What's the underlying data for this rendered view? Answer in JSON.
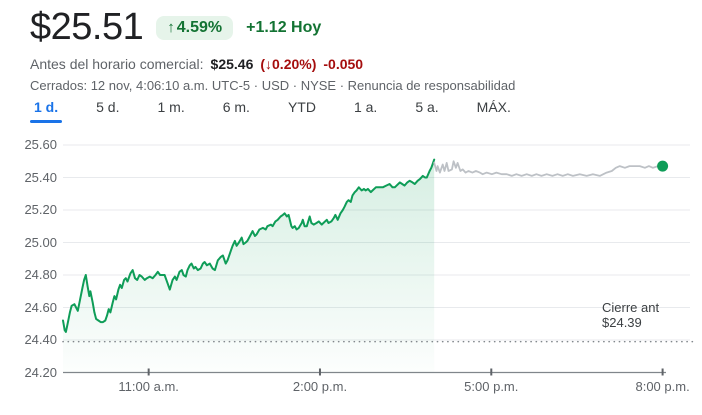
{
  "header": {
    "price": "$25.51",
    "badge_arrow": "↑",
    "badge_percent": "4.59%",
    "change_today": "+1.12 Hoy",
    "premarket_label": "Antes del horario comercial:",
    "premarket_price": "$25.46",
    "premarket_percent": "(↓0.20%)",
    "premarket_delta": "-0.050",
    "status_prefix": "Cerrados: 12 nov, 4:06:10 a.m. UTC-5 · USD · NYSE · ",
    "disclaimer_label": "Renuncia de responsabilidad"
  },
  "tabs": [
    {
      "key": "1d",
      "label": "1 d.",
      "active": true
    },
    {
      "key": "5d",
      "label": "5 d.",
      "active": false
    },
    {
      "key": "1m",
      "label": "1 m.",
      "active": false
    },
    {
      "key": "6m",
      "label": "6 m.",
      "active": false
    },
    {
      "key": "ytd",
      "label": "YTD",
      "active": false
    },
    {
      "key": "1a",
      "label": "1 a.",
      "active": false
    },
    {
      "key": "5a",
      "label": "5 a.",
      "active": false
    },
    {
      "key": "max",
      "label": "MÁX.",
      "active": false
    }
  ],
  "chart_data": {
    "type": "line",
    "xlim": [
      9.5,
      20.0
    ],
    "ylim": [
      24.2,
      25.6
    ],
    "grid": true,
    "y_ticks": [
      {
        "value": 25.6,
        "label": "25.60"
      },
      {
        "value": 25.4,
        "label": "25.40"
      },
      {
        "value": 25.2,
        "label": "25.20"
      },
      {
        "value": 25.0,
        "label": "25.00"
      },
      {
        "value": 24.8,
        "label": "24.80"
      },
      {
        "value": 24.6,
        "label": "24.60"
      },
      {
        "value": 24.4,
        "label": "24.40"
      },
      {
        "value": 24.2,
        "label": "24.20"
      }
    ],
    "x_ticks": [
      {
        "t": 11.0,
        "label": "11:00 a.m."
      },
      {
        "t": 14.0,
        "label": "2:00 p.m."
      },
      {
        "t": 17.0,
        "label": "5:00 p.m."
      },
      {
        "t": 20.0,
        "label": "8:00 p.m."
      }
    ],
    "previous_close": {
      "value": 24.39,
      "label_line1": "Cierre ant",
      "label_line2": "$24.39"
    },
    "colors": {
      "regular_line": "#0f9d58",
      "after_hours_line": "#bdc1c6",
      "fill_green": "15,157,88",
      "grid": "#e8eaed",
      "axis": "#80868b",
      "accent_green": "#137333",
      "badge_bg": "#e6f4ea",
      "red": "#a50e0e",
      "blue": "#1a73e8"
    },
    "series": [
      {
        "name": "regular",
        "points": [
          [
            9.5,
            24.52
          ],
          [
            9.53,
            24.46
          ],
          [
            9.55,
            24.45
          ],
          [
            9.58,
            24.5
          ],
          [
            9.62,
            24.57
          ],
          [
            9.65,
            24.61
          ],
          [
            9.7,
            24.62
          ],
          [
            9.73,
            24.6
          ],
          [
            9.76,
            24.58
          ],
          [
            9.8,
            24.65
          ],
          [
            9.84,
            24.72
          ],
          [
            9.87,
            24.77
          ],
          [
            9.9,
            24.8
          ],
          [
            9.93,
            24.73
          ],
          [
            9.96,
            24.67
          ],
          [
            9.98,
            24.7
          ],
          [
            10.02,
            24.63
          ],
          [
            10.05,
            24.57
          ],
          [
            10.08,
            24.53
          ],
          [
            10.12,
            24.52
          ],
          [
            10.16,
            24.51
          ],
          [
            10.2,
            24.51
          ],
          [
            10.24,
            24.52
          ],
          [
            10.27,
            24.55
          ],
          [
            10.3,
            24.59
          ],
          [
            10.33,
            24.57
          ],
          [
            10.37,
            24.63
          ],
          [
            10.4,
            24.67
          ],
          [
            10.43,
            24.65
          ],
          [
            10.47,
            24.71
          ],
          [
            10.5,
            24.74
          ],
          [
            10.53,
            24.72
          ],
          [
            10.57,
            24.77
          ],
          [
            10.6,
            24.78
          ],
          [
            10.63,
            24.76
          ],
          [
            10.68,
            24.81
          ],
          [
            10.72,
            24.83
          ],
          [
            10.76,
            24.78
          ],
          [
            10.8,
            24.77
          ],
          [
            10.84,
            24.8
          ],
          [
            10.88,
            24.79
          ],
          [
            10.93,
            24.77
          ],
          [
            10.97,
            24.78
          ],
          [
            11.02,
            24.79
          ],
          [
            11.07,
            24.78
          ],
          [
            11.12,
            24.8
          ],
          [
            11.16,
            24.82
          ],
          [
            11.2,
            24.8
          ],
          [
            11.28,
            24.8
          ],
          [
            11.33,
            24.75
          ],
          [
            11.37,
            24.71
          ],
          [
            11.42,
            24.77
          ],
          [
            11.46,
            24.79
          ],
          [
            11.49,
            24.77
          ],
          [
            11.54,
            24.82
          ],
          [
            11.58,
            24.83
          ],
          [
            11.61,
            24.8
          ],
          [
            11.65,
            24.79
          ],
          [
            11.68,
            24.83
          ],
          [
            11.72,
            24.86
          ],
          [
            11.75,
            24.87
          ],
          [
            11.79,
            24.84
          ],
          [
            11.82,
            24.85
          ],
          [
            11.86,
            24.83
          ],
          [
            11.91,
            24.84
          ],
          [
            11.95,
            24.87
          ],
          [
            11.98,
            24.88
          ],
          [
            12.02,
            24.86
          ],
          [
            12.07,
            24.87
          ],
          [
            12.12,
            24.84
          ],
          [
            12.16,
            24.83
          ],
          [
            12.21,
            24.89
          ],
          [
            12.26,
            24.91
          ],
          [
            12.3,
            24.92
          ],
          [
            12.35,
            24.87
          ],
          [
            12.38,
            24.89
          ],
          [
            12.44,
            24.95
          ],
          [
            12.47,
            24.98
          ],
          [
            12.51,
            25.01
          ],
          [
            12.54,
            24.98
          ],
          [
            12.58,
            25.0
          ],
          [
            12.63,
            25.03
          ],
          [
            12.66,
            24.99
          ],
          [
            12.7,
            25.0
          ],
          [
            12.73,
            25.01
          ],
          [
            12.79,
            25.05
          ],
          [
            12.82,
            25.07
          ],
          [
            12.86,
            25.04
          ],
          [
            12.89,
            25.05
          ],
          [
            12.94,
            25.08
          ],
          [
            13.0,
            25.09
          ],
          [
            13.05,
            25.08
          ],
          [
            13.08,
            25.1
          ],
          [
            13.14,
            25.11
          ],
          [
            13.17,
            25.1
          ],
          [
            13.22,
            25.13
          ],
          [
            13.26,
            25.14
          ],
          [
            13.31,
            25.16
          ],
          [
            13.35,
            25.17
          ],
          [
            13.38,
            25.18
          ],
          [
            13.42,
            25.16
          ],
          [
            13.45,
            25.17
          ],
          [
            13.5,
            25.1
          ],
          [
            13.52,
            25.09
          ],
          [
            13.56,
            25.1
          ],
          [
            13.59,
            25.08
          ],
          [
            13.63,
            25.09
          ],
          [
            13.68,
            25.12
          ],
          [
            13.7,
            25.14
          ],
          [
            13.73,
            25.1
          ],
          [
            13.77,
            25.1
          ],
          [
            13.82,
            25.16
          ],
          [
            13.85,
            25.12
          ],
          [
            13.89,
            25.11
          ],
          [
            13.94,
            25.12
          ],
          [
            13.98,
            25.13
          ],
          [
            14.03,
            25.11
          ],
          [
            14.06,
            25.12
          ],
          [
            14.12,
            25.14
          ],
          [
            14.15,
            25.12
          ],
          [
            14.2,
            25.13
          ],
          [
            14.24,
            25.15
          ],
          [
            14.27,
            25.17
          ],
          [
            14.31,
            25.14
          ],
          [
            14.36,
            25.18
          ],
          [
            14.4,
            25.2
          ],
          [
            14.43,
            25.22
          ],
          [
            14.47,
            25.25
          ],
          [
            14.5,
            25.26
          ],
          [
            14.54,
            25.25
          ],
          [
            14.57,
            25.29
          ],
          [
            14.61,
            25.31
          ],
          [
            14.64,
            25.32
          ],
          [
            14.68,
            25.34
          ],
          [
            14.73,
            25.32
          ],
          [
            14.77,
            25.33
          ],
          [
            14.8,
            25.32
          ],
          [
            14.84,
            25.33
          ],
          [
            14.89,
            25.31
          ],
          [
            14.92,
            25.32
          ],
          [
            14.98,
            25.34
          ],
          [
            15.01,
            25.34
          ],
          [
            15.1,
            25.34
          ],
          [
            15.16,
            25.35
          ],
          [
            15.22,
            25.36
          ],
          [
            15.27,
            25.34
          ],
          [
            15.31,
            25.34
          ],
          [
            15.4,
            25.37
          ],
          [
            15.44,
            25.36
          ],
          [
            15.48,
            25.35
          ],
          [
            15.53,
            25.37
          ],
          [
            15.57,
            25.38
          ],
          [
            15.62,
            25.37
          ],
          [
            15.66,
            25.36
          ],
          [
            15.71,
            25.38
          ],
          [
            15.75,
            25.39
          ],
          [
            15.8,
            25.41
          ],
          [
            15.84,
            25.4
          ],
          [
            15.87,
            25.4
          ],
          [
            15.92,
            25.44
          ],
          [
            15.95,
            25.46
          ],
          [
            15.97,
            25.48
          ],
          [
            16.0,
            25.51
          ]
        ]
      },
      {
        "name": "after_hours",
        "points": [
          [
            16.0,
            25.49
          ],
          [
            16.04,
            25.44
          ],
          [
            16.06,
            25.47
          ],
          [
            16.1,
            25.43
          ],
          [
            16.15,
            25.48
          ],
          [
            16.18,
            25.44
          ],
          [
            16.22,
            25.49
          ],
          [
            16.25,
            25.44
          ],
          [
            16.31,
            25.45
          ],
          [
            16.34,
            25.5
          ],
          [
            16.38,
            25.46
          ],
          [
            16.41,
            25.49
          ],
          [
            16.46,
            25.44
          ],
          [
            16.5,
            25.45
          ],
          [
            16.55,
            25.43
          ],
          [
            16.6,
            25.44
          ],
          [
            16.67,
            25.43
          ],
          [
            16.73,
            25.44
          ],
          [
            16.8,
            25.43
          ],
          [
            16.85,
            25.42
          ],
          [
            16.92,
            25.43
          ],
          [
            17.01,
            25.42
          ],
          [
            17.09,
            25.43
          ],
          [
            17.18,
            25.42
          ],
          [
            17.27,
            25.42
          ],
          [
            17.36,
            25.41
          ],
          [
            17.44,
            25.42
          ],
          [
            17.53,
            25.41
          ],
          [
            17.62,
            25.42
          ],
          [
            17.71,
            25.41
          ],
          [
            17.79,
            25.42
          ],
          [
            17.88,
            25.41
          ],
          [
            17.97,
            25.42
          ],
          [
            18.07,
            25.41
          ],
          [
            18.16,
            25.42
          ],
          [
            18.25,
            25.41
          ],
          [
            18.34,
            25.42
          ],
          [
            18.43,
            25.41
          ],
          [
            18.55,
            25.42
          ],
          [
            18.67,
            25.41
          ],
          [
            18.78,
            25.42
          ],
          [
            18.9,
            25.41
          ],
          [
            19.02,
            25.43
          ],
          [
            19.11,
            25.44
          ],
          [
            19.18,
            25.46
          ],
          [
            19.25,
            25.47
          ],
          [
            19.34,
            25.46
          ],
          [
            19.42,
            25.47
          ],
          [
            19.51,
            25.47
          ],
          [
            19.6,
            25.47
          ],
          [
            19.69,
            25.46
          ],
          [
            19.76,
            25.47
          ],
          [
            19.83,
            25.46
          ],
          [
            19.92,
            25.47
          ],
          [
            20.0,
            25.47
          ]
        ]
      }
    ]
  }
}
